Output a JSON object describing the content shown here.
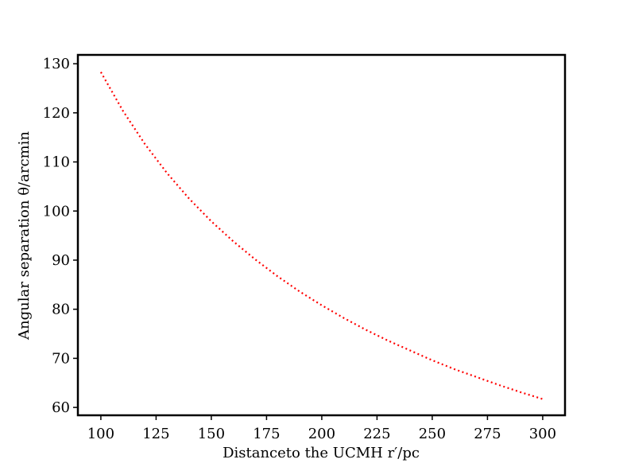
{
  "chart_data": {
    "type": "line",
    "xlabel": "Distanceto the UCMH r′/pc",
    "ylabel": "Angular separation θ/arcmin",
    "x": [
      100,
      110,
      120,
      130,
      140,
      150,
      160,
      170,
      180,
      190,
      200,
      210,
      220,
      230,
      240,
      250,
      260,
      270,
      280,
      290,
      300
    ],
    "series": [
      {
        "color": "#ff0000",
        "values": [
          128.3,
          120.4,
          113.6,
          107.7,
          102.5,
          97.9,
          93.8,
          90.1,
          86.7,
          83.6,
          80.8,
          78.2,
          75.8,
          73.6,
          71.6,
          69.6,
          67.8,
          66.2,
          64.6,
          63.1,
          61.7
        ]
      }
    ],
    "xlim": [
      89.6,
      310.1
    ],
    "ylim": [
      58.4,
      131.8
    ],
    "xticks": [
      100,
      125,
      150,
      175,
      200,
      225,
      250,
      275,
      300
    ],
    "yticks": [
      60,
      70,
      80,
      90,
      100,
      110,
      120,
      130
    ]
  }
}
